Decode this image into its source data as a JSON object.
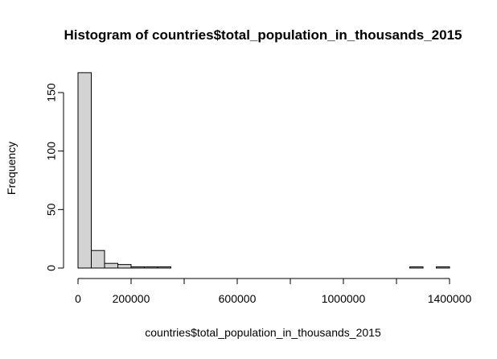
{
  "chart_data": {
    "type": "bar",
    "title": "Histogram of countries$total_population_in_thousands_2015",
    "xlabel": "countries$total_population_in_thousands_2015",
    "ylabel": "Frequency",
    "xlim": [
      0,
      1400000
    ],
    "ylim": [
      0,
      165
    ],
    "x_ticks": [
      0,
      400000,
      800000,
      1200000
    ],
    "x_tick_labels": [
      "0",
      "",
      "",
      ""
    ],
    "x_tick_labels_extra": [
      {
        "value": 200000,
        "label": "200000"
      },
      {
        "value": 600000,
        "label": "600000"
      },
      {
        "value": 1000000,
        "label": "1000000"
      },
      {
        "value": 1400000,
        "label": "1400000"
      }
    ],
    "y_ticks": [
      0,
      50,
      100,
      150
    ],
    "y_tick_labels": [
      "0",
      "50",
      "100",
      "150"
    ],
    "bin_width": 50000,
    "bins": [
      {
        "x0": 0,
        "x1": 50000,
        "count": 167
      },
      {
        "x0": 50000,
        "x1": 100000,
        "count": 15
      },
      {
        "x0": 100000,
        "x1": 150000,
        "count": 4
      },
      {
        "x0": 150000,
        "x1": 200000,
        "count": 3
      },
      {
        "x0": 200000,
        "x1": 250000,
        "count": 1
      },
      {
        "x0": 250000,
        "x1": 300000,
        "count": 1
      },
      {
        "x0": 300000,
        "x1": 350000,
        "count": 1
      },
      {
        "x0": 350000,
        "x1": 400000,
        "count": 0
      },
      {
        "x0": 400000,
        "x1": 450000,
        "count": 0
      },
      {
        "x0": 450000,
        "x1": 500000,
        "count": 0
      },
      {
        "x0": 500000,
        "x1": 550000,
        "count": 0
      },
      {
        "x0": 550000,
        "x1": 600000,
        "count": 0
      },
      {
        "x0": 600000,
        "x1": 650000,
        "count": 0
      },
      {
        "x0": 650000,
        "x1": 700000,
        "count": 0
      },
      {
        "x0": 700000,
        "x1": 750000,
        "count": 0
      },
      {
        "x0": 750000,
        "x1": 800000,
        "count": 0
      },
      {
        "x0": 800000,
        "x1": 850000,
        "count": 0
      },
      {
        "x0": 850000,
        "x1": 900000,
        "count": 0
      },
      {
        "x0": 900000,
        "x1": 950000,
        "count": 0
      },
      {
        "x0": 950000,
        "x1": 1000000,
        "count": 0
      },
      {
        "x0": 1000000,
        "x1": 1050000,
        "count": 0
      },
      {
        "x0": 1050000,
        "x1": 1100000,
        "count": 0
      },
      {
        "x0": 1100000,
        "x1": 1150000,
        "count": 0
      },
      {
        "x0": 1150000,
        "x1": 1200000,
        "count": 0
      },
      {
        "x0": 1200000,
        "x1": 1250000,
        "count": 0
      },
      {
        "x0": 1250000,
        "x1": 1300000,
        "count": 1
      },
      {
        "x0": 1300000,
        "x1": 1350000,
        "count": 0
      },
      {
        "x0": 1350000,
        "x1": 1400000,
        "count": 1
      }
    ],
    "colors": {
      "bar_fill": "#d3d3d3",
      "bar_stroke": "#000000",
      "axis": "#000000"
    },
    "grid": false,
    "legend": "none"
  }
}
